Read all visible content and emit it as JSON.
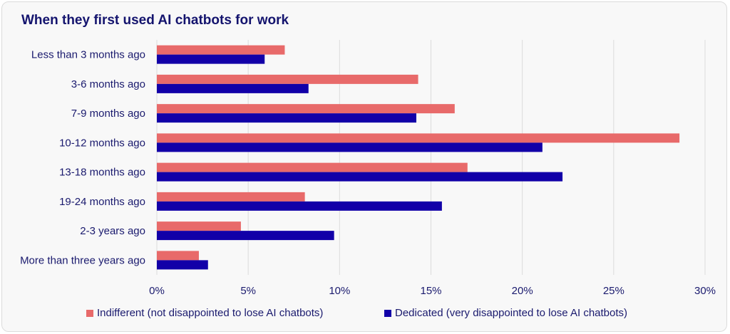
{
  "colors": {
    "indifferent": "#e86a6a",
    "dedicated": "#1200a8",
    "text": "#1a1a6e",
    "grid": "#dcdcdc"
  },
  "chart_data": {
    "type": "bar",
    "orientation": "horizontal",
    "title": "When they first used AI chatbots for work",
    "categories": [
      "Less than 3 months ago",
      "3-6 months ago",
      "7-9 months ago",
      "10-12 months ago",
      "13-18 months ago",
      "19-24 months ago",
      "2-3 years ago",
      "More than three years ago"
    ],
    "series": [
      {
        "name": "Indifferent (not disappointed to lose AI chatbots)",
        "values": [
          7.0,
          14.3,
          16.3,
          28.6,
          17.0,
          8.1,
          4.6,
          2.3
        ]
      },
      {
        "name": "Dedicated (very disappointed to lose AI chatbots)",
        "values": [
          5.9,
          8.3,
          14.2,
          21.1,
          22.2,
          15.6,
          9.7,
          2.8
        ]
      }
    ],
    "xlim": [
      0,
      30
    ],
    "x_ticks": [
      "0%",
      "5%",
      "10%",
      "15%",
      "20%",
      "25%",
      "30%"
    ],
    "grid": "vertical",
    "legend_position": "bottom"
  }
}
